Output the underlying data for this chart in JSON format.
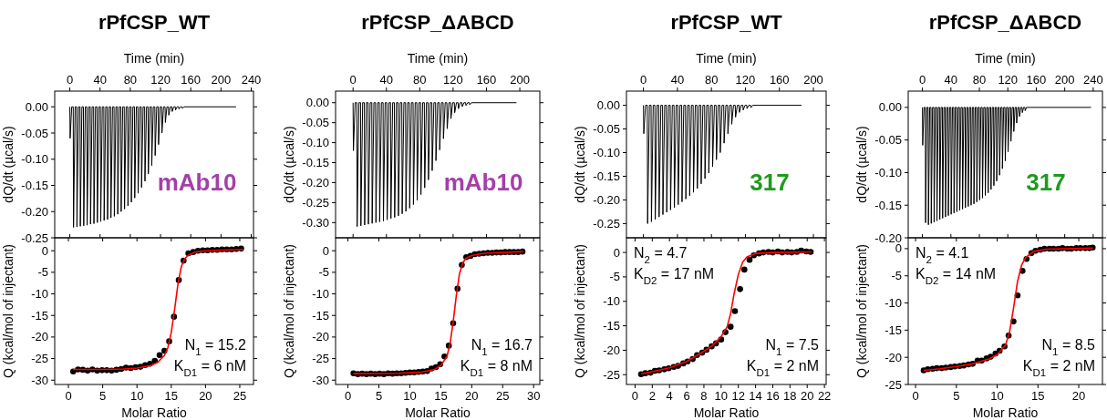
{
  "chart_data": [
    {
      "type": "line",
      "title": "rPfCSP_WT",
      "xlabel": "Time (min)",
      "xlim": [
        -20,
        243
      ],
      "xticks": [
        0,
        40,
        80,
        120,
        160,
        200,
        240
      ],
      "ylabel": "dQ/dt (µcal/s)",
      "ylim": [
        -0.25,
        0.03
      ],
      "yticks": [
        {
          "value": 0,
          "label": "0.00"
        },
        {
          "value": -0.05,
          "label": "-0.05"
        },
        {
          "value": -0.1,
          "label": "-0.10"
        },
        {
          "value": -0.15,
          "label": "-0.15"
        },
        {
          "value": -0.2,
          "label": "-0.20"
        },
        {
          "value": -0.25,
          "label": "-0.25"
        }
      ],
      "annotations": [
        "mAb10"
      ],
      "series": [
        {
          "color": "#000000",
          "x": [
            0,
            0.4,
            2.5,
            4.5,
            4.9,
            7,
            9,
            9.4,
            11.5,
            13.5,
            13.9,
            16,
            18,
            18.4,
            20.5,
            22.5,
            22.9,
            25,
            27,
            27.4,
            29.5,
            31.5,
            31.9,
            34,
            36,
            36.4,
            38.5,
            40.5,
            40.9,
            43,
            45,
            45.4,
            47.5,
            49.5,
            49.9,
            52,
            54,
            54.4,
            56.5,
            58.5,
            58.9,
            61,
            63,
            63.4,
            65.5,
            67.5,
            67.9,
            70,
            72,
            72.4,
            74.5,
            76.5,
            76.9,
            79,
            81,
            81.4,
            83.5,
            85.5,
            85.9,
            88,
            90,
            90.4,
            92.5,
            94.5,
            94.9,
            97,
            99,
            99.4,
            101.5,
            103.5,
            103.9,
            106,
            108,
            108.4,
            110.5,
            112.5,
            112.9,
            115,
            117,
            117.4,
            119.5,
            121.5,
            121.9,
            124,
            126,
            126.4,
            128.5,
            130.5,
            130.9,
            133,
            135,
            135.4,
            137.5,
            139.5,
            139.9,
            142,
            144,
            144.4,
            146.5,
            148.5,
            148.9,
            151,
            220
          ],
          "values": [
            0,
            -0.06,
            0,
            0,
            -0.23,
            0,
            0,
            -0.229,
            0,
            0,
            -0.228,
            0,
            0,
            -0.227,
            0,
            0,
            -0.226,
            0,
            0,
            -0.224,
            0,
            0,
            -0.223,
            0,
            0,
            -0.221,
            0,
            0,
            -0.219,
            0,
            0,
            -0.217,
            0,
            0,
            -0.215,
            0,
            0,
            -0.212,
            0,
            0,
            -0.209,
            0,
            0,
            -0.205,
            0,
            0,
            -0.2,
            0,
            0,
            -0.195,
            0,
            0,
            -0.189,
            0,
            0,
            -0.182,
            0,
            0,
            -0.174,
            0,
            0,
            -0.165,
            0,
            0,
            -0.154,
            0,
            0,
            -0.142,
            0,
            0,
            -0.128,
            0,
            0,
            -0.112,
            0,
            0,
            -0.093,
            0,
            0,
            -0.072,
            0,
            0,
            -0.05,
            0,
            0,
            -0.03,
            0,
            0,
            -0.016,
            0,
            0,
            -0.009,
            0,
            0,
            -0.006,
            0,
            0,
            -0.004,
            0,
            0,
            -0.003,
            0,
            0
          ]
        }
      ]
    },
    {
      "type": "line",
      "title": "rPfCSP_ΔABCD",
      "xlabel": "Time (min)",
      "xlim": [
        -21,
        224
      ],
      "xticks": [
        0,
        40,
        80,
        120,
        160,
        200
      ],
      "ylabel": "dQ/dt (µcal/s)",
      "ylim": [
        -0.338,
        0.029
      ],
      "yticks": [
        {
          "value": 0,
          "label": "0.00"
        },
        {
          "value": -0.05,
          "label": "-0.05"
        },
        {
          "value": -0.1,
          "label": "-0.10"
        },
        {
          "value": -0.15,
          "label": "-0.15"
        },
        {
          "value": -0.2,
          "label": "-0.20"
        },
        {
          "value": -0.25,
          "label": "-0.25"
        },
        {
          "value": -0.3,
          "label": "-0.30"
        }
      ],
      "annotations": [
        "mAb10"
      ],
      "series": [
        {
          "color": "#000000",
          "x": [
            0,
            0.4,
            2.5,
            4.5,
            4.9,
            7,
            9,
            9.4,
            11.5,
            13.5,
            13.9,
            16,
            18,
            18.4,
            20.5,
            22.5,
            22.9,
            25,
            27,
            27.4,
            29.5,
            31.5,
            31.9,
            34,
            36,
            36.4,
            38.5,
            40.5,
            40.9,
            43,
            45,
            45.4,
            47.5,
            49.5,
            49.9,
            52,
            54,
            54.4,
            56.5,
            58.5,
            58.9,
            61,
            63,
            63.4,
            65.5,
            67.5,
            67.9,
            70,
            72,
            72.4,
            74.5,
            76.5,
            76.9,
            79,
            81,
            81.4,
            83.5,
            85.5,
            85.9,
            88,
            90,
            90.4,
            92.5,
            94.5,
            94.9,
            97,
            99,
            99.4,
            101.5,
            103.5,
            103.9,
            106,
            108,
            108.4,
            110.5,
            112.5,
            112.9,
            115,
            117,
            117.4,
            119.5,
            121.5,
            121.9,
            124,
            126,
            126.4,
            128.5,
            130.5,
            130.9,
            133,
            135,
            135.4,
            137.5,
            139.5,
            139.9,
            142,
            196
          ],
          "values": [
            0,
            -0.12,
            0,
            0,
            -0.31,
            0,
            0,
            -0.308,
            0,
            0,
            -0.306,
            0,
            0,
            -0.304,
            0,
            0,
            -0.302,
            0,
            0,
            -0.3,
            0,
            0,
            -0.298,
            0,
            0,
            -0.296,
            0,
            0,
            -0.293,
            0,
            0,
            -0.29,
            0,
            0,
            -0.287,
            0,
            0,
            -0.283,
            0,
            0,
            -0.278,
            0,
            0,
            -0.272,
            0,
            0,
            -0.264,
            0,
            0,
            -0.255,
            0,
            0,
            -0.244,
            0,
            0,
            -0.23,
            0,
            0,
            -0.213,
            0,
            0,
            -0.193,
            0,
            0,
            -0.17,
            0,
            0,
            -0.145,
            0,
            0,
            -0.118,
            0,
            0,
            -0.09,
            0,
            0,
            -0.065,
            0,
            0,
            -0.04,
            0,
            0,
            -0.025,
            0,
            0,
            -0.015,
            0,
            0,
            -0.01,
            0,
            0,
            -0.007,
            0,
            0,
            -0.005,
            0,
            0
          ]
        }
      ]
    },
    {
      "type": "line",
      "title": "rPfCSP_WT",
      "xlabel": "Time (min)",
      "xlim": [
        -20,
        215
      ],
      "xticks": [
        0,
        40,
        80,
        120,
        160,
        200
      ],
      "ylabel": "dQ/dt (µcal/s)",
      "ylim": [
        -0.28,
        0.03
      ],
      "yticks": [
        {
          "value": 0,
          "label": "0.00"
        },
        {
          "value": -0.05,
          "label": "-0.05"
        },
        {
          "value": -0.1,
          "label": "-0.10"
        },
        {
          "value": -0.15,
          "label": "-0.15"
        },
        {
          "value": -0.2,
          "label": "-0.20"
        },
        {
          "value": -0.25,
          "label": "-0.25"
        }
      ],
      "annotations": [
        "317"
      ],
      "series": [
        {
          "color": "#000000",
          "x": [
            0,
            0.4,
            2.5,
            4.5,
            4.9,
            7,
            9,
            9.4,
            11.5,
            13.5,
            13.9,
            16,
            18,
            18.4,
            20.5,
            22.5,
            22.9,
            25,
            27,
            27.4,
            29.5,
            31.5,
            31.9,
            34,
            36,
            36.4,
            38.5,
            40.5,
            40.9,
            43,
            45,
            45.4,
            47.5,
            49.5,
            49.9,
            52,
            54,
            54.4,
            56.5,
            58.5,
            58.9,
            61,
            63,
            63.4,
            65.5,
            67.5,
            67.9,
            70,
            72,
            72.4,
            74.5,
            76.5,
            76.9,
            79,
            81,
            81.4,
            83.5,
            85.5,
            85.9,
            88,
            90,
            90.4,
            92.5,
            94.5,
            94.9,
            97,
            99,
            99.4,
            101.5,
            103.5,
            103.9,
            106,
            108,
            108.4,
            110.5,
            112.5,
            112.9,
            115,
            117,
            117.4,
            119.5,
            121.5,
            121.9,
            124,
            126,
            126.4,
            128.5,
            186
          ],
          "values": [
            0,
            -0.06,
            0,
            0,
            -0.25,
            0,
            0,
            -0.246,
            0,
            0,
            -0.241,
            0,
            0,
            -0.236,
            0,
            0,
            -0.231,
            0,
            0,
            -0.226,
            0,
            0,
            -0.221,
            0,
            0,
            -0.216,
            0,
            0,
            -0.21,
            0,
            0,
            -0.204,
            0,
            0,
            -0.198,
            0,
            0,
            -0.191,
            0,
            0,
            -0.184,
            0,
            0,
            -0.176,
            0,
            0,
            -0.166,
            0,
            0,
            -0.155,
            0,
            0,
            -0.143,
            0,
            0,
            -0.13,
            0,
            0,
            -0.115,
            0,
            0,
            -0.1,
            0,
            0,
            -0.08,
            0,
            0,
            -0.06,
            0,
            0,
            -0.04,
            0,
            0,
            -0.025,
            0,
            0,
            -0.015,
            0,
            0,
            -0.01,
            0,
            0,
            -0.007,
            0,
            0,
            -0.005,
            0,
            0
          ]
        }
      ]
    },
    {
      "type": "line",
      "title": "rPfCSP_ΔABCD",
      "xlabel": "Time (min)",
      "xlim": [
        -20,
        253
      ],
      "xticks": [
        0,
        40,
        80,
        120,
        160,
        200,
        240
      ],
      "ylabel": "dQ/dt (µcal/s)",
      "ylim": [
        -0.2,
        0.025
      ],
      "yticks": [
        {
          "value": 0,
          "label": "0.00"
        },
        {
          "value": -0.05,
          "label": "-0.05"
        },
        {
          "value": -0.1,
          "label": "-0.10"
        },
        {
          "value": -0.15,
          "label": "-0.15"
        },
        {
          "value": -0.2,
          "label": "-0.20"
        }
      ],
      "annotations": [
        "317"
      ],
      "series": [
        {
          "color": "#000000",
          "x": [
            0,
            0.4,
            2.2,
            4,
            4.4,
            6.2,
            8,
            8.4,
            10.2,
            12,
            12.4,
            14.2,
            16,
            16.4,
            18.2,
            20,
            20.4,
            22.2,
            24,
            24.4,
            26.2,
            28,
            28.4,
            30.2,
            32,
            32.4,
            34.2,
            36,
            36.4,
            38.2,
            40,
            40.4,
            42.2,
            44,
            44.4,
            46.2,
            48,
            48.4,
            50.2,
            52,
            52.4,
            54.2,
            56,
            56.4,
            58.2,
            60,
            60.4,
            62.2,
            64,
            64.4,
            66.2,
            68,
            68.4,
            70.2,
            72,
            72.4,
            74.2,
            76,
            76.4,
            78.2,
            80,
            80.4,
            82.2,
            84,
            84.4,
            86.2,
            88,
            88.4,
            90.2,
            92,
            92.4,
            94.2,
            96,
            96.4,
            98.2,
            100,
            100.4,
            102.2,
            104,
            104.4,
            106.2,
            108,
            108.4,
            110.2,
            112,
            112.4,
            114.2,
            116,
            116.4,
            118.2,
            120,
            120.4,
            122.2,
            124,
            124.4,
            126.2,
            128,
            128.4,
            130.2,
            132,
            132.4,
            134.2,
            136,
            136.4,
            138.2,
            140,
            140.4,
            142.2,
            144,
            144.4,
            146.2,
            237
          ],
          "values": [
            0,
            -0.058,
            0,
            0,
            -0.177,
            0,
            0,
            -0.18,
            0,
            0,
            -0.178,
            0,
            0,
            -0.176,
            0,
            0,
            -0.174,
            0,
            0,
            -0.172,
            0,
            0,
            -0.17,
            0,
            0,
            -0.168,
            0,
            0,
            -0.166,
            0,
            0,
            -0.164,
            0,
            0,
            -0.162,
            0,
            0,
            -0.16,
            0,
            0,
            -0.158,
            0,
            0,
            -0.156,
            0,
            0,
            -0.154,
            0,
            0,
            -0.152,
            0,
            0,
            -0.15,
            0,
            0,
            -0.148,
            0,
            0,
            -0.145,
            0,
            0,
            -0.142,
            0,
            0,
            -0.139,
            0,
            0,
            -0.135,
            0,
            0,
            -0.131,
            0,
            0,
            -0.126,
            0,
            0,
            -0.12,
            0,
            0,
            -0.113,
            0,
            0,
            -0.104,
            0,
            0,
            -0.094,
            0,
            0,
            -0.082,
            0,
            0,
            -0.068,
            0,
            0,
            -0.052,
            0,
            0,
            -0.037,
            0,
            0,
            -0.024,
            0,
            0,
            -0.014,
            0,
            0,
            -0.008,
            0,
            0,
            -0.005,
            0,
            0
          ]
        }
      ]
    },
    {
      "type": "scatter",
      "xlabel": "Molar Ratio",
      "ylabel": "Q (kcal/mol of injectant)",
      "xlim": [
        -2,
        27
      ],
      "xticks": [
        0,
        5,
        10,
        15,
        20,
        25
      ],
      "ylim": [
        -31,
        3
      ],
      "yticks": [
        0,
        -5,
        -10,
        -15,
        -20,
        -25,
        -30
      ],
      "annotations": [
        "N$_{1}$ = 15.2",
        "K$_{D1}$ = 6 nM"
      ],
      "series": [
        {
          "marker": "circle",
          "color": "#000000",
          "x": [
            0.7,
            1.4,
            2.1,
            2.8,
            3.5,
            4.2,
            4.9,
            5.6,
            6.3,
            7.0,
            7.7,
            8.4,
            9.1,
            9.8,
            10.5,
            11.2,
            11.9,
            12.6,
            13.3,
            14.0,
            14.7,
            15.4,
            16.1,
            16.8,
            17.5,
            18.2,
            18.9,
            19.6,
            20.3,
            21.0,
            21.7,
            22.4,
            23.1,
            23.8,
            24.5,
            25.2
          ],
          "values": [
            -28.0,
            -27.5,
            -27.6,
            -27.8,
            -27.5,
            -27.8,
            -27.7,
            -27.7,
            -27.8,
            -27.6,
            -27.4,
            -27.1,
            -27.2,
            -27.0,
            -26.9,
            -26.5,
            -26.2,
            -25.5,
            -24.2,
            -23.2,
            -21.0,
            -15.3,
            -6.8,
            -2.3,
            -0.6,
            -0.3,
            0,
            0.1,
            0.1,
            0.2,
            0.2,
            0.3,
            0.3,
            0.3,
            0.4,
            0.5
          ]
        },
        {
          "type": "line",
          "color": "#ff0000",
          "x": [
            0.7,
            5,
            8,
            10,
            12,
            13,
            14,
            14.5,
            15,
            15.5,
            16,
            16.5,
            17,
            17.5,
            18.5,
            20,
            25.5
          ],
          "values": [
            -27.5,
            -27.5,
            -27.4,
            -27.2,
            -26.6,
            -25.9,
            -24.3,
            -22.5,
            -19,
            -13.5,
            -7.5,
            -3.5,
            -1.8,
            -1.0,
            -0.3,
            0,
            0.3
          ]
        }
      ]
    },
    {
      "type": "scatter",
      "xlabel": "Molar Ratio",
      "ylabel": "Q (kcal/mol of injectant)",
      "xlim": [
        -2,
        31
      ],
      "xticks": [
        0,
        5,
        10,
        15,
        20,
        25,
        30
      ],
      "ylim": [
        -31,
        3
      ],
      "yticks": [
        0,
        -5,
        -10,
        -15,
        -20,
        -25,
        -30
      ],
      "annotations": [
        "N$_{1}$ = 16.7",
        "K$_{D1}$ = 8 nM"
      ],
      "series": [
        {
          "marker": "circle",
          "color": "#000000",
          "x": [
            0.9,
            1.6,
            2.3,
            3.0,
            3.7,
            4.4,
            5.1,
            5.8,
            6.5,
            7.2,
            7.9,
            8.6,
            9.3,
            10.0,
            10.7,
            11.4,
            12.1,
            12.8,
            13.5,
            14.2,
            14.9,
            15.6,
            16.3,
            17.0,
            17.7,
            18.4,
            19.1,
            19.8,
            20.5,
            21.2,
            21.9,
            22.6,
            23.3,
            24.0,
            24.7,
            25.4,
            26.1,
            26.8,
            27.5,
            28.2
          ],
          "values": [
            -28.4,
            -28.6,
            -28.5,
            -28.6,
            -28.5,
            -28.6,
            -28.5,
            -28.6,
            -28.4,
            -28.5,
            -28.4,
            -28.4,
            -28.3,
            -28.2,
            -28.2,
            -28.1,
            -28.0,
            -27.9,
            -27.3,
            -27.0,
            -26.3,
            -24.5,
            -22.0,
            -16.8,
            -8.8,
            -3.3,
            -1.5,
            -1.2,
            -0.8,
            -0.7,
            -0.6,
            -0.5,
            -0.5,
            -0.4,
            -0.4,
            -0.3,
            -0.3,
            -0.3,
            -0.3,
            -0.2
          ]
        },
        {
          "type": "line",
          "color": "#ff0000",
          "x": [
            0.9,
            8,
            12,
            14,
            15,
            16,
            16.5,
            17,
            17.5,
            18,
            18.5,
            19,
            20,
            22,
            28.3
          ],
          "values": [
            -28.5,
            -28.4,
            -28.1,
            -27.5,
            -26.6,
            -24.5,
            -21.5,
            -16.5,
            -10.5,
            -5.5,
            -3,
            -1.8,
            -1.1,
            -0.6,
            -0.2
          ]
        }
      ]
    },
    {
      "type": "scatter",
      "xlabel": "Molar Ratio",
      "ylabel": "Q (kcal/mol of injectant)",
      "xlim": [
        -1,
        22.2
      ],
      "xticks": [
        0,
        2,
        4,
        6,
        8,
        10,
        12,
        14,
        16,
        18,
        20,
        22
      ],
      "ylim": [
        -27,
        3
      ],
      "yticks": [
        0,
        -5,
        -10,
        -15,
        -20,
        -25
      ],
      "annotations": [
        "N$_{2}$ = 4.7",
        "K$_{D2}$ = 17 nM",
        "N$_{1}$ = 7.5",
        "K$_{D1}$ = 2 nM"
      ],
      "series": [
        {
          "marker": "circle",
          "color": "#000000",
          "x": [
            0.7,
            1.2,
            1.8,
            2.3,
            2.8,
            3.4,
            3.9,
            4.5,
            5.0,
            5.6,
            6.1,
            6.7,
            7.2,
            7.8,
            8.3,
            8.9,
            9.4,
            10.0,
            10.5,
            11.1,
            11.6,
            12.2,
            12.7,
            13.3,
            13.8,
            14.4,
            14.9,
            15.5,
            16.0,
            16.6,
            17.1,
            17.7,
            18.2,
            18.8,
            19.3,
            19.9,
            20.4
          ],
          "values": [
            -24.9,
            -24.7,
            -24.6,
            -24.2,
            -24.1,
            -23.9,
            -23.7,
            -23.4,
            -23.2,
            -22.7,
            -22.3,
            -21.8,
            -21.0,
            -20.5,
            -19.9,
            -19.2,
            -18.6,
            -17.8,
            -16.3,
            -15.2,
            -12.0,
            -7.5,
            -3.5,
            -1.5,
            -0.6,
            -0.2,
            0,
            0.1,
            0,
            0.2,
            0,
            0.1,
            0,
            0.1,
            0.4,
            0.2,
            0.1
          ]
        },
        {
          "type": "line",
          "color": "#ff0000",
          "x": [
            0.7,
            2,
            4,
            6,
            8,
            9,
            10,
            10.7,
            11.1,
            11.5,
            12,
            12.5,
            13,
            14,
            16,
            20.5
          ],
          "values": [
            -24.8,
            -24.4,
            -23.6,
            -22.3,
            -20.2,
            -19.0,
            -17.2,
            -15.2,
            -12.5,
            -8.5,
            -4.5,
            -2.0,
            -0.9,
            -0.2,
            0,
            0.1
          ]
        }
      ]
    },
    {
      "type": "scatter",
      "xlabel": "Molar Ratio",
      "ylabel": "Q (kcal/mol of injectant)",
      "xlim": [
        -0.9,
        22.9
      ],
      "xticks": [
        0,
        5,
        10,
        15,
        20
      ],
      "ylim": [
        -25,
        2
      ],
      "yticks": [
        0,
        -5,
        -10,
        -15,
        -20,
        -25
      ],
      "annotations": [
        "N$_{2}$ = 4.1",
        "K$_{D2}$ = 14 nM",
        "N$_{1}$ = 8.5",
        "K$_{D1}$ = 2 nM"
      ],
      "series": [
        {
          "marker": "circle",
          "color": "#000000",
          "x": [
            1.0,
            1.5,
            2.1,
            2.6,
            3.2,
            3.7,
            4.3,
            4.8,
            5.4,
            5.9,
            6.5,
            7.0,
            7.6,
            8.1,
            8.7,
            9.2,
            9.8,
            10.3,
            10.9,
            11.4,
            12.0,
            12.5,
            13.1,
            13.6,
            14.2,
            14.7,
            15.3,
            15.8,
            16.4,
            16.9,
            17.5,
            18.0,
            18.6,
            19.1,
            19.7,
            20.2,
            20.8,
            21.3,
            21.7
          ],
          "values": [
            -22.4,
            -22.2,
            -22.1,
            -22.0,
            -22.0,
            -21.9,
            -21.8,
            -21.7,
            -21.6,
            -21.5,
            -21.3,
            -21.2,
            -20.6,
            -20.6,
            -20.2,
            -19.9,
            -19.3,
            -18.8,
            -18.0,
            -16.0,
            -13.4,
            -8.6,
            -4.1,
            -1.9,
            -0.8,
            -0.4,
            -0.2,
            0,
            0,
            0,
            0,
            0.1,
            0,
            0,
            0.1,
            0.1,
            0.1,
            0.1,
            0.2
          ]
        },
        {
          "type": "line",
          "color": "#ff0000",
          "x": [
            1,
            3,
            5,
            7,
            9,
            10,
            11,
            11.5,
            12,
            12.5,
            13,
            13.5,
            14.5,
            16,
            21.7
          ],
          "values": [
            -22.4,
            -22.1,
            -21.7,
            -21.2,
            -20.3,
            -19.5,
            -17.8,
            -15.5,
            -11,
            -6,
            -3,
            -1.6,
            -0.5,
            -0.1,
            0.1
          ]
        }
      ]
    }
  ]
}
